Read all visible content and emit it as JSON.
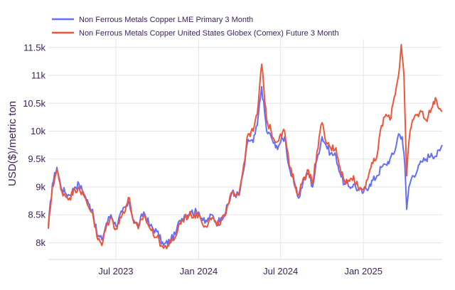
{
  "chart_data": {
    "type": "line",
    "title": "",
    "xlabel": "",
    "ylabel": "USD($)/metric ton",
    "x_range": [
      "2023-02-01",
      "2025-06-25"
    ],
    "ylim": [
      7700,
      11650
    ],
    "y_ticks": [
      {
        "value": 8000,
        "label": "8k"
      },
      {
        "value": 8500,
        "label": "8.5k"
      },
      {
        "value": 9000,
        "label": "9k"
      },
      {
        "value": 9500,
        "label": "9.5k"
      },
      {
        "value": 10000,
        "label": "10k"
      },
      {
        "value": 10500,
        "label": "10.5k"
      },
      {
        "value": 11000,
        "label": "11k"
      },
      {
        "value": 11500,
        "label": "11.5k"
      }
    ],
    "x_ticks": [
      {
        "value": "2023-07-01",
        "label": "Jul 2023"
      },
      {
        "value": "2024-01-01",
        "label": "Jan 2024"
      },
      {
        "value": "2024-07-01",
        "label": "Jul 2024"
      },
      {
        "value": "2025-01-01",
        "label": "Jan 2025"
      }
    ],
    "grid": true,
    "legend_position": "top-left",
    "series": [
      {
        "name": "Non Ferrous Metals Copper LME Primary 3 Month",
        "color": "#636efa",
        "points": [
          [
            "2023-02-01",
            8300
          ],
          [
            "2023-02-10",
            9050
          ],
          [
            "2023-02-20",
            9350
          ],
          [
            "2023-03-01",
            9000
          ],
          [
            "2023-03-10",
            8900
          ],
          [
            "2023-03-20",
            8850
          ],
          [
            "2023-04-01",
            9000
          ],
          [
            "2023-04-10",
            9050
          ],
          [
            "2023-04-20",
            8900
          ],
          [
            "2023-05-01",
            8700
          ],
          [
            "2023-05-10",
            8600
          ],
          [
            "2023-05-20",
            8150
          ],
          [
            "2023-05-31",
            8050
          ],
          [
            "2023-06-10",
            8350
          ],
          [
            "2023-06-20",
            8500
          ],
          [
            "2023-07-01",
            8300
          ],
          [
            "2023-07-15",
            8550
          ],
          [
            "2023-07-31",
            8700
          ],
          [
            "2023-08-10",
            8400
          ],
          [
            "2023-08-20",
            8300
          ],
          [
            "2023-09-01",
            8550
          ],
          [
            "2023-09-15",
            8300
          ],
          [
            "2023-09-30",
            8200
          ],
          [
            "2023-10-15",
            7950
          ],
          [
            "2023-10-31",
            8050
          ],
          [
            "2023-11-10",
            8150
          ],
          [
            "2023-11-20",
            8400
          ],
          [
            "2023-12-01",
            8500
          ],
          [
            "2023-12-15",
            8550
          ],
          [
            "2024-01-01",
            8550
          ],
          [
            "2024-01-15",
            8350
          ],
          [
            "2024-01-31",
            8500
          ],
          [
            "2024-02-10",
            8350
          ],
          [
            "2024-02-20",
            8450
          ],
          [
            "2024-03-01",
            8550
          ],
          [
            "2024-03-15",
            8900
          ],
          [
            "2024-03-31",
            8850
          ],
          [
            "2024-04-10",
            9300
          ],
          [
            "2024-04-20",
            9850
          ],
          [
            "2024-05-01",
            9800
          ],
          [
            "2024-05-10",
            10100
          ],
          [
            "2024-05-20",
            10800
          ],
          [
            "2024-05-31",
            10000
          ],
          [
            "2024-06-10",
            9900
          ],
          [
            "2024-06-20",
            9700
          ],
          [
            "2024-07-01",
            9800
          ],
          [
            "2024-07-10",
            9900
          ],
          [
            "2024-07-20",
            9350
          ],
          [
            "2024-07-31",
            9050
          ],
          [
            "2024-08-10",
            8800
          ],
          [
            "2024-08-20",
            9100
          ],
          [
            "2024-09-01",
            9250
          ],
          [
            "2024-09-10",
            9000
          ],
          [
            "2024-09-20",
            9500
          ],
          [
            "2024-10-01",
            9900
          ],
          [
            "2024-10-10",
            9750
          ],
          [
            "2024-10-20",
            9600
          ],
          [
            "2024-11-01",
            9550
          ],
          [
            "2024-11-10",
            9250
          ],
          [
            "2024-11-20",
            9050
          ],
          [
            "2024-12-01",
            9000
          ],
          [
            "2024-12-10",
            9050
          ],
          [
            "2024-12-20",
            8950
          ],
          [
            "2025-01-01",
            8900
          ],
          [
            "2025-01-15",
            9050
          ],
          [
            "2025-01-31",
            9200
          ],
          [
            "2025-02-10",
            9350
          ],
          [
            "2025-02-20",
            9400
          ],
          [
            "2025-03-01",
            9500
          ],
          [
            "2025-03-10",
            9600
          ],
          [
            "2025-03-20",
            9950
          ],
          [
            "2025-03-28",
            9900
          ],
          [
            "2025-04-03",
            9400
          ],
          [
            "2025-04-07",
            8600
          ],
          [
            "2025-04-12",
            9000
          ],
          [
            "2025-04-20",
            9200
          ],
          [
            "2025-05-01",
            9300
          ],
          [
            "2025-05-10",
            9450
          ],
          [
            "2025-05-20",
            9500
          ],
          [
            "2025-06-01",
            9600
          ],
          [
            "2025-06-10",
            9550
          ],
          [
            "2025-06-20",
            9650
          ],
          [
            "2025-06-25",
            9750
          ]
        ]
      },
      {
        "name": "Non Ferrous Metals Copper United States Globex (Comex) Future 3 Month",
        "color": "#ef553b",
        "points": [
          [
            "2023-02-01",
            8250
          ],
          [
            "2023-02-10",
            9000
          ],
          [
            "2023-02-20",
            9300
          ],
          [
            "2023-03-01",
            8950
          ],
          [
            "2023-03-10",
            8850
          ],
          [
            "2023-03-20",
            8800
          ],
          [
            "2023-04-01",
            8950
          ],
          [
            "2023-04-10",
            9000
          ],
          [
            "2023-04-20",
            8850
          ],
          [
            "2023-05-01",
            8650
          ],
          [
            "2023-05-10",
            8550
          ],
          [
            "2023-05-20",
            8100
          ],
          [
            "2023-05-31",
            7950
          ],
          [
            "2023-06-10",
            8300
          ],
          [
            "2023-06-20",
            8450
          ],
          [
            "2023-07-01",
            8250
          ],
          [
            "2023-07-15",
            8500
          ],
          [
            "2023-07-31",
            8800
          ],
          [
            "2023-08-10",
            8350
          ],
          [
            "2023-08-20",
            8250
          ],
          [
            "2023-09-01",
            8500
          ],
          [
            "2023-09-15",
            8250
          ],
          [
            "2023-09-30",
            8100
          ],
          [
            "2023-10-15",
            7900
          ],
          [
            "2023-10-31",
            8000
          ],
          [
            "2023-11-10",
            8100
          ],
          [
            "2023-11-20",
            8350
          ],
          [
            "2023-12-01",
            8450
          ],
          [
            "2023-12-15",
            8500
          ],
          [
            "2024-01-01",
            8500
          ],
          [
            "2024-01-15",
            8300
          ],
          [
            "2024-01-31",
            8450
          ],
          [
            "2024-02-10",
            8300
          ],
          [
            "2024-02-20",
            8400
          ],
          [
            "2024-03-01",
            8500
          ],
          [
            "2024-03-15",
            8900
          ],
          [
            "2024-03-31",
            8900
          ],
          [
            "2024-04-10",
            9400
          ],
          [
            "2024-04-20",
            9950
          ],
          [
            "2024-05-01",
            10000
          ],
          [
            "2024-05-10",
            10300
          ],
          [
            "2024-05-20",
            11200
          ],
          [
            "2024-05-31",
            10200
          ],
          [
            "2024-06-10",
            10000
          ],
          [
            "2024-06-20",
            9800
          ],
          [
            "2024-07-01",
            9950
          ],
          [
            "2024-07-10",
            10000
          ],
          [
            "2024-07-20",
            9400
          ],
          [
            "2024-07-31",
            9100
          ],
          [
            "2024-08-10",
            8850
          ],
          [
            "2024-08-20",
            9150
          ],
          [
            "2024-09-01",
            9300
          ],
          [
            "2024-09-10",
            9050
          ],
          [
            "2024-09-20",
            9650
          ],
          [
            "2024-10-01",
            10150
          ],
          [
            "2024-10-10",
            9800
          ],
          [
            "2024-10-20",
            9700
          ],
          [
            "2024-11-01",
            9700
          ],
          [
            "2024-11-10",
            9350
          ],
          [
            "2024-11-20",
            9100
          ],
          [
            "2024-12-01",
            9100
          ],
          [
            "2024-12-10",
            9200
          ],
          [
            "2024-12-20",
            9000
          ],
          [
            "2025-01-01",
            8950
          ],
          [
            "2025-01-15",
            9300
          ],
          [
            "2025-01-31",
            9550
          ],
          [
            "2025-02-10",
            10100
          ],
          [
            "2025-02-20",
            10300
          ],
          [
            "2025-03-01",
            10200
          ],
          [
            "2025-03-10",
            10600
          ],
          [
            "2025-03-20",
            11000
          ],
          [
            "2025-03-26",
            11550
          ],
          [
            "2025-04-01",
            11000
          ],
          [
            "2025-04-07",
            9200
          ],
          [
            "2025-04-12",
            9800
          ],
          [
            "2025-04-20",
            10200
          ],
          [
            "2025-05-01",
            10300
          ],
          [
            "2025-05-10",
            10350
          ],
          [
            "2025-05-20",
            10200
          ],
          [
            "2025-06-01",
            10400
          ],
          [
            "2025-06-10",
            10600
          ],
          [
            "2025-06-18",
            10400
          ],
          [
            "2025-06-25",
            10350
          ]
        ]
      }
    ]
  }
}
